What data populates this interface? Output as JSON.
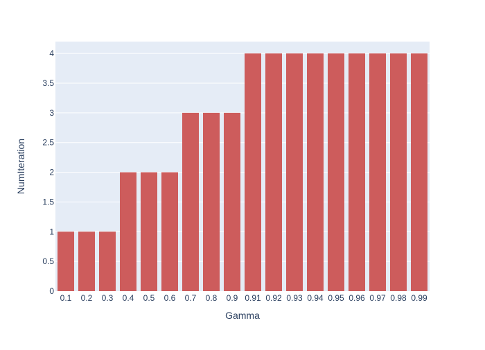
{
  "chart_data": {
    "type": "bar",
    "title": "",
    "xlabel": "Gamma",
    "ylabel": "NumIteration",
    "categories": [
      "0.1",
      "0.2",
      "0.3",
      "0.4",
      "0.5",
      "0.6",
      "0.7",
      "0.8",
      "0.9",
      "0.91",
      "0.92",
      "0.93",
      "0.94",
      "0.95",
      "0.96",
      "0.97",
      "0.98",
      "0.99"
    ],
    "values": [
      1,
      1,
      1,
      2,
      2,
      2,
      3,
      3,
      3,
      4,
      4,
      4,
      4,
      4,
      4,
      4,
      4,
      4
    ],
    "ylim": [
      0,
      4.2
    ],
    "yticks": [
      "0",
      "0.5",
      "1",
      "1.5",
      "2",
      "2.5",
      "3",
      "3.5",
      "4"
    ],
    "grid": true,
    "legend": "none",
    "colors": {
      "bar": "#cd5c5c",
      "plot_bg": "#e5ecf6",
      "grid": "#ffffff",
      "text": "#2a3f5f"
    }
  }
}
